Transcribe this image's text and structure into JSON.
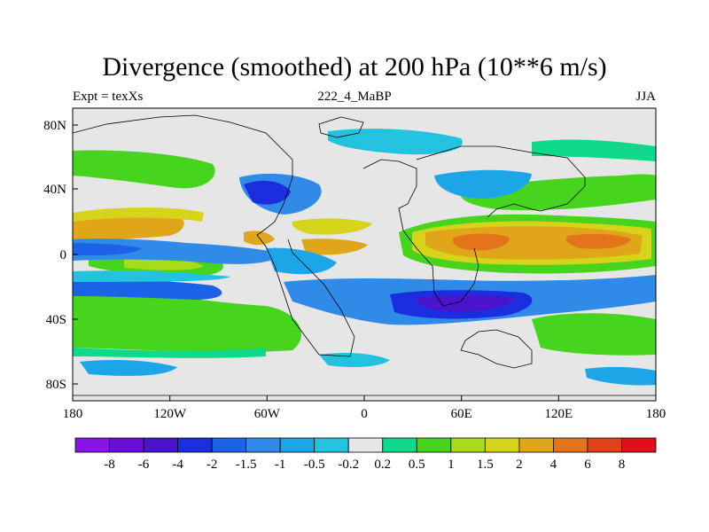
{
  "title": "Divergence (smoothed) at 200 hPa (10**6 m/s)",
  "subtitle_left": "Expt = texXs",
  "subtitle_center": "222_4_MaBP",
  "subtitle_right": "JJA",
  "x_ticks": [
    "180",
    "120W",
    "60W",
    "0",
    "60E",
    "120E",
    "180"
  ],
  "y_ticks": [
    "80N",
    "40N",
    "0",
    "40S",
    "80S"
  ],
  "colorbar": {
    "labels": [
      "-8",
      "-6",
      "-4",
      "-2",
      "-1.5",
      "-1",
      "-0.5",
      "-0.2",
      "0.2",
      "0.5",
      "1",
      "1.5",
      "2",
      "4",
      "6",
      "8"
    ],
    "colors": [
      "#8a13e6",
      "#6a0fd8",
      "#4a14cc",
      "#1a2ee0",
      "#1c62e6",
      "#2f8ae8",
      "#1ca6e8",
      "#23c3e0",
      "#e6e6e6",
      "#0fd98a",
      "#46d41c",
      "#a8dc18",
      "#d6d41a",
      "#e0a61a",
      "#e4741a",
      "#e0401a",
      "#e0101a"
    ]
  },
  "colors": {
    "background": "#e6e6e6",
    "coastline": "#000000"
  },
  "chart_data": {
    "type": "heatmap",
    "title": "Divergence (smoothed) at 200 hPa (10**6 m/s)",
    "variable": "Divergence (smoothed)",
    "level": "200 hPa",
    "units": "10**6 m/s",
    "experiment": "texXs",
    "case": "222_4_MaBP",
    "season": "JJA",
    "xlim": [
      -180,
      180
    ],
    "ylim": [
      -90,
      90
    ],
    "x_ticks": [
      -180,
      -120,
      -60,
      0,
      60,
      120,
      180
    ],
    "y_ticks": [
      80,
      40,
      0,
      -40,
      -80
    ],
    "contour_levels": [
      -8,
      -6,
      -4,
      -2,
      -1.5,
      -1,
      -0.5,
      -0.2,
      0.2,
      0.5,
      1,
      1.5,
      2,
      4,
      6,
      8
    ]
  }
}
